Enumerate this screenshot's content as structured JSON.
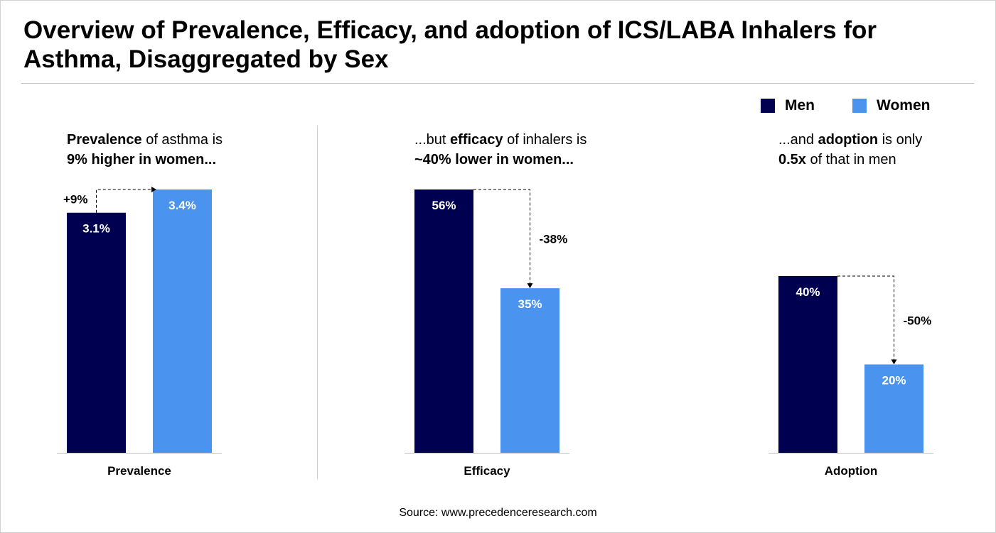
{
  "title": "Overview of Prevalence, Efficacy, and adoption of ICS/LABA Inhalers for Asthma, Disaggregated by Sex",
  "source": "Source: www.precedenceresearch.com",
  "colors": {
    "men": "#000050",
    "women": "#4a93ee"
  },
  "panels": [
    {
      "sub_bold1": "Prevalence",
      "sub_rest1": " of asthma is",
      "sub_bold2": "9% higher in women...",
      "sub_rest2": ""
    },
    {
      "sub_pre1": "...but ",
      "sub_bold1": "efficacy",
      "sub_rest1": " of inhalers is",
      "sub_bold2": "~40% lower in women...",
      "sub_rest2": ""
    },
    {
      "sub_pre1": "...and ",
      "sub_bold1": "adoption",
      "sub_rest1": " is only",
      "sub_bold2": "0.5x",
      "sub_rest2": " of that in men"
    }
  ],
  "chart_data": [
    {
      "type": "bar",
      "category": "Prevalence",
      "series": [
        {
          "name": "Men",
          "value": 3.1,
          "label": "3.1%"
        },
        {
          "name": "Women",
          "value": 3.4,
          "label": "3.4%"
        }
      ],
      "annotation": "+9%",
      "legend": "top-right"
    },
    {
      "type": "bar",
      "category": "Efficacy",
      "series": [
        {
          "name": "Men",
          "value": 56,
          "label": "56%"
        },
        {
          "name": "Women",
          "value": 35,
          "label": "35%"
        }
      ],
      "annotation": "-38%"
    },
    {
      "type": "bar",
      "category": "Adoption",
      "series": [
        {
          "name": "Men",
          "value": 40,
          "label": "40%"
        },
        {
          "name": "Women",
          "value": 20,
          "label": "20%"
        }
      ],
      "annotation": "-50%"
    }
  ],
  "legend": {
    "men": "Men",
    "women": "Women"
  }
}
